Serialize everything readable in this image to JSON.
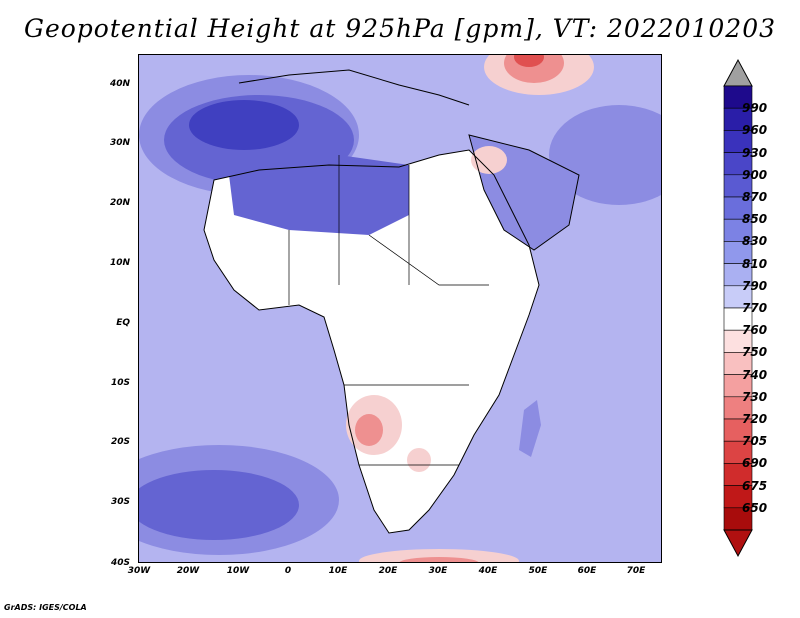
{
  "title": "Geopotential Height at 925hPa [gpm], VT: 2022010203",
  "credit": "GrADS: IGES/COLA",
  "lat_labels": [
    "40N",
    "30N",
    "20N",
    "10N",
    "EQ",
    "10S",
    "20S",
    "30S",
    "40S"
  ],
  "lon_labels": [
    "30W",
    "20W",
    "10W",
    "0",
    "10E",
    "20E",
    "30E",
    "40E",
    "50E",
    "60E",
    "70E"
  ],
  "colorbar": {
    "labels": [
      "990",
      "960",
      "930",
      "900",
      "870",
      "850",
      "830",
      "810",
      "790",
      "770",
      "760",
      "750",
      "740",
      "730",
      "720",
      "705",
      "690",
      "675",
      "650"
    ],
    "colors": [
      "#1e0a8c",
      "#2a1ea8",
      "#3a32bc",
      "#4a46c8",
      "#5a5ad2",
      "#6a6edc",
      "#7c82e4",
      "#9098ec",
      "#aab0f2",
      "#c8ccf8",
      "#ffffff",
      "#fde0e0",
      "#f9c0c0",
      "#f4a0a0",
      "#ee8080",
      "#e66060",
      "#dc4444",
      "#d02c2c",
      "#c01818",
      "#a80c0c"
    ],
    "over_color": "#a0a0a0",
    "under_color": "#b01010"
  },
  "fill": {
    "ocean": "#b4b4f0",
    "land": "#ffffff",
    "strong_high": "#4040c0",
    "high": "#6464d2",
    "mid_high": "#8c8ce2",
    "low_light": "#f6d0d0",
    "low": "#ee9090",
    "low_strong": "#e05050"
  }
}
